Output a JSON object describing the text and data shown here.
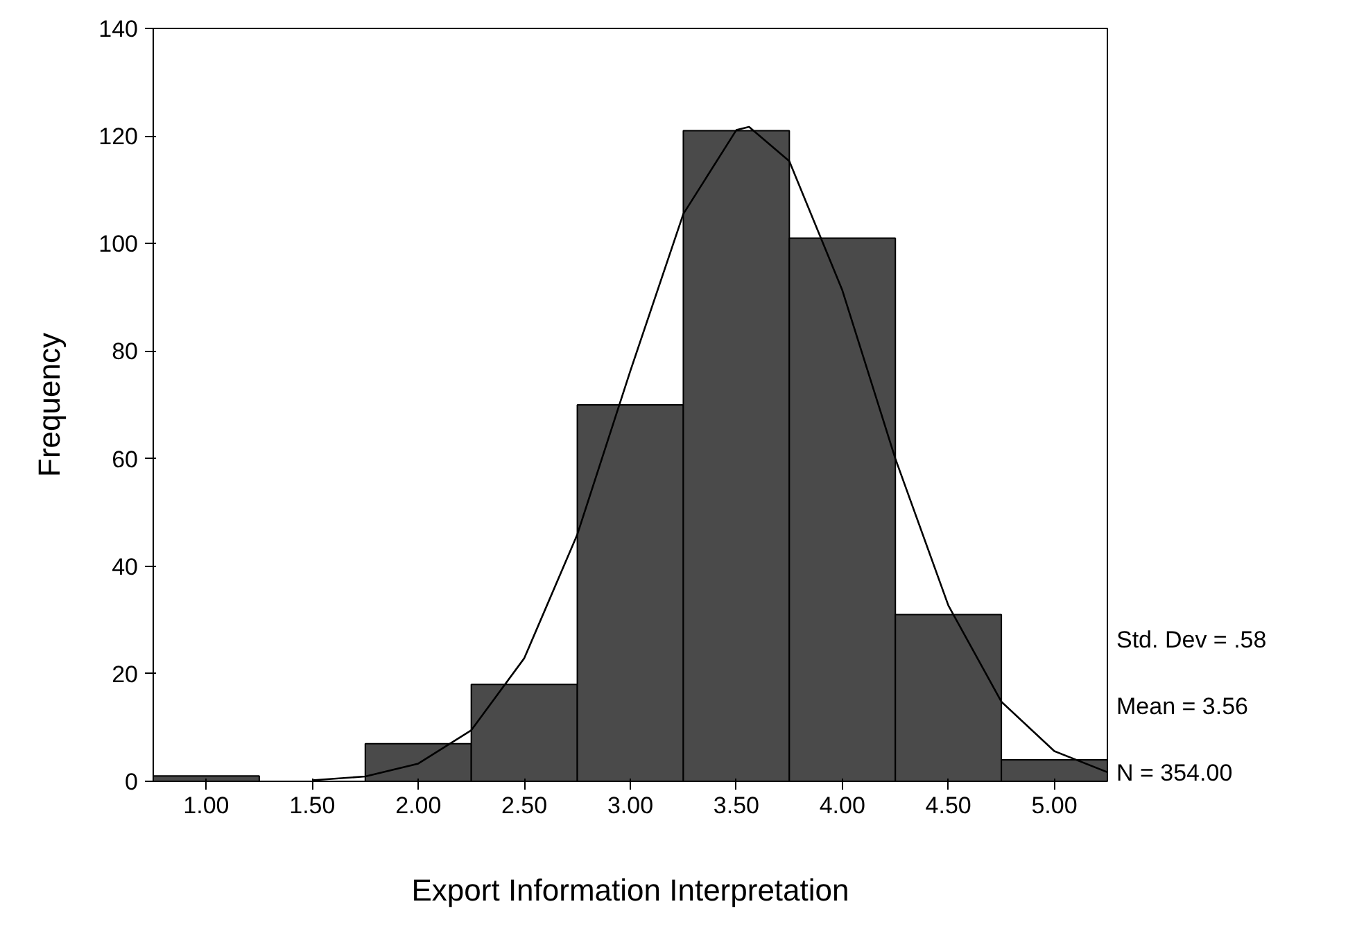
{
  "chart_data": {
    "type": "histogram",
    "xlabel": "Export Information Interpretation",
    "ylabel": "Frequency",
    "bins": [
      0.75,
      1.25,
      1.75,
      2.25,
      2.75,
      3.25,
      3.75,
      4.25,
      4.75,
      5.25
    ],
    "values": [
      1,
      0,
      7,
      18,
      70,
      121,
      101,
      31,
      4
    ],
    "color": "#4a4a4a",
    "series": [
      {
        "type": "line",
        "color": "#000000",
        "x": [
          1.5,
          1.75,
          2.0,
          2.25,
          2.5,
          2.75,
          3.0,
          3.25,
          3.5,
          3.56,
          3.75,
          4.0,
          4.25,
          4.5,
          4.75,
          5.0,
          5.25
        ],
        "values": [
          0.2,
          0.9,
          3.3,
          9.5,
          22.9,
          45.9,
          76.3,
          105.5,
          121.1,
          121.7,
          115.3,
          91.3,
          60.0,
          32.7,
          14.8,
          5.6,
          1.7
        ]
      }
    ],
    "xlim": [
      0.75,
      5.25
    ],
    "ylim": [
      0,
      140
    ],
    "xticks": [
      {
        "value": 1,
        "label": "1.00"
      },
      {
        "value": 1.5,
        "label": "1.50"
      },
      {
        "value": 2,
        "label": "2.00"
      },
      {
        "value": 2.5,
        "label": "2.50"
      },
      {
        "value": 3,
        "label": "3.00"
      },
      {
        "value": 3.5,
        "label": "3.50"
      },
      {
        "value": 4,
        "label": "4.00"
      },
      {
        "value": 4.5,
        "label": "4.50"
      },
      {
        "value": 5,
        "label": "5.00"
      }
    ],
    "yticks": [
      0,
      20,
      40,
      60,
      80,
      100,
      120,
      140
    ],
    "grid": false,
    "annotations": [
      "Std. Dev = .58",
      "Mean = 3.56",
      "N = 354.00"
    ]
  }
}
